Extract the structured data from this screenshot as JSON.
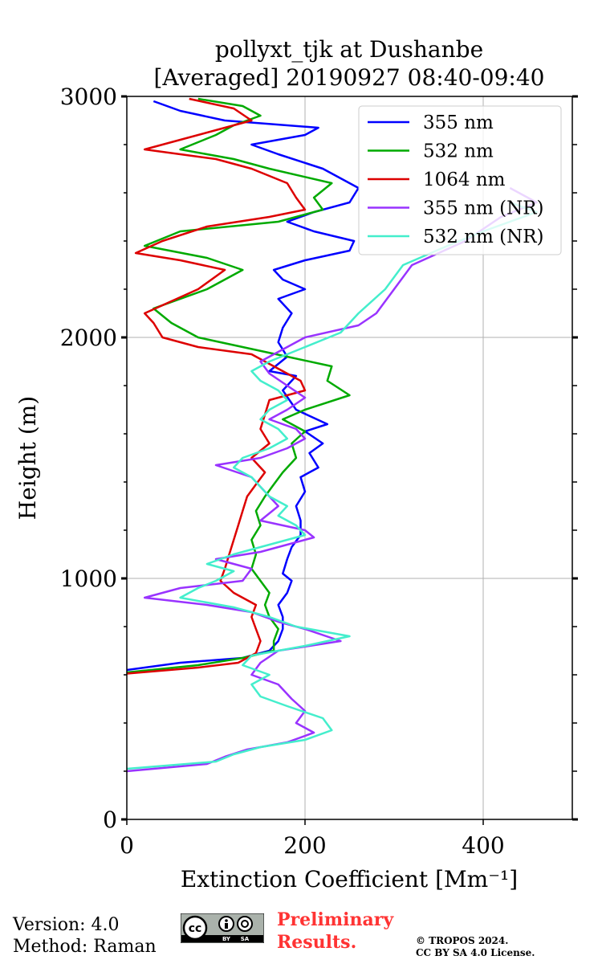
{
  "chart_data": {
    "type": "line",
    "title": "pollyxt_tjk at Dushanbe",
    "subtitle": "[Averaged] 20190927 08:40-09:40",
    "xlabel": "Extinction Coefficient [Mm⁻¹]",
    "ylabel": "Height (m)",
    "xlim": [
      0,
      500
    ],
    "ylim": [
      0,
      3000
    ],
    "xticks": [
      "0",
      "200",
      "400"
    ],
    "xtick_values": [
      0,
      200,
      400
    ],
    "yticks": [
      "0",
      "1000",
      "2000",
      "3000"
    ],
    "ytick_values": [
      0,
      1000,
      2000,
      3000
    ],
    "grid": true,
    "legend_position": "top-right",
    "series": [
      {
        "name": "355 nm",
        "color": "#0000ff",
        "points": [
          [
            0,
            620
          ],
          [
            60,
            650
          ],
          [
            130,
            670
          ],
          [
            160,
            700
          ],
          [
            170,
            740
          ],
          [
            175,
            790
          ],
          [
            175,
            840
          ],
          [
            170,
            890
          ],
          [
            180,
            940
          ],
          [
            185,
            990
          ],
          [
            175,
            1020
          ],
          [
            180,
            1080
          ],
          [
            185,
            1130
          ],
          [
            195,
            1180
          ],
          [
            195,
            1240
          ],
          [
            190,
            1300
          ],
          [
            200,
            1360
          ],
          [
            195,
            1420
          ],
          [
            215,
            1460
          ],
          [
            205,
            1520
          ],
          [
            220,
            1560
          ],
          [
            200,
            1610
          ],
          [
            225,
            1640
          ],
          [
            190,
            1700
          ],
          [
            175,
            1780
          ],
          [
            190,
            1840
          ],
          [
            160,
            1860
          ],
          [
            180,
            1920
          ],
          [
            170,
            1980
          ],
          [
            175,
            2040
          ],
          [
            185,
            2100
          ],
          [
            170,
            2160
          ],
          [
            200,
            2200
          ],
          [
            175,
            2240
          ],
          [
            165,
            2280
          ],
          [
            200,
            2320
          ],
          [
            250,
            2360
          ],
          [
            255,
            2400
          ],
          [
            210,
            2440
          ],
          [
            180,
            2480
          ],
          [
            210,
            2520
          ],
          [
            250,
            2560
          ],
          [
            260,
            2620
          ],
          [
            220,
            2700
          ],
          [
            170,
            2760
          ],
          [
            140,
            2800
          ],
          [
            200,
            2840
          ],
          [
            215,
            2870
          ],
          [
            110,
            2900
          ],
          [
            60,
            2940
          ],
          [
            30,
            2980
          ]
        ]
      },
      {
        "name": "532 nm",
        "color": "#00aa00",
        "points": [
          [
            0,
            610
          ],
          [
            80,
            640
          ],
          [
            130,
            670
          ],
          [
            165,
            700
          ],
          [
            165,
            740
          ],
          [
            170,
            790
          ],
          [
            160,
            840
          ],
          [
            155,
            890
          ],
          [
            160,
            940
          ],
          [
            150,
            990
          ],
          [
            140,
            1040
          ],
          [
            145,
            1100
          ],
          [
            140,
            1160
          ],
          [
            150,
            1220
          ],
          [
            145,
            1280
          ],
          [
            155,
            1340
          ],
          [
            165,
            1390
          ],
          [
            175,
            1440
          ],
          [
            190,
            1500
          ],
          [
            185,
            1560
          ],
          [
            200,
            1610
          ],
          [
            175,
            1660
          ],
          [
            200,
            1700
          ],
          [
            250,
            1760
          ],
          [
            225,
            1820
          ],
          [
            230,
            1880
          ],
          [
            180,
            1920
          ],
          [
            130,
            1960
          ],
          [
            80,
            2000
          ],
          [
            50,
            2060
          ],
          [
            30,
            2120
          ],
          [
            90,
            2200
          ],
          [
            130,
            2280
          ],
          [
            90,
            2330
          ],
          [
            20,
            2380
          ],
          [
            60,
            2440
          ],
          [
            170,
            2480
          ],
          [
            220,
            2530
          ],
          [
            210,
            2580
          ],
          [
            230,
            2640
          ],
          [
            160,
            2700
          ],
          [
            120,
            2740
          ],
          [
            60,
            2780
          ],
          [
            100,
            2840
          ],
          [
            120,
            2880
          ],
          [
            150,
            2920
          ],
          [
            130,
            2960
          ],
          [
            80,
            2990
          ]
        ]
      },
      {
        "name": "1064 nm",
        "color": "#dd0000",
        "points": [
          [
            0,
            605
          ],
          [
            80,
            630
          ],
          [
            125,
            650
          ],
          [
            145,
            690
          ],
          [
            150,
            740
          ],
          [
            145,
            790
          ],
          [
            140,
            840
          ],
          [
            145,
            890
          ],
          [
            120,
            940
          ],
          [
            105,
            990
          ],
          [
            110,
            1040
          ],
          [
            115,
            1100
          ],
          [
            120,
            1160
          ],
          [
            125,
            1220
          ],
          [
            130,
            1280
          ],
          [
            135,
            1340
          ],
          [
            145,
            1390
          ],
          [
            155,
            1440
          ],
          [
            140,
            1500
          ],
          [
            160,
            1560
          ],
          [
            150,
            1620
          ],
          [
            155,
            1680
          ],
          [
            160,
            1740
          ],
          [
            200,
            1780
          ],
          [
            195,
            1820
          ],
          [
            175,
            1860
          ],
          [
            160,
            1890
          ],
          [
            140,
            1930
          ],
          [
            80,
            1960
          ],
          [
            40,
            2000
          ],
          [
            30,
            2060
          ],
          [
            20,
            2100
          ],
          [
            80,
            2200
          ],
          [
            110,
            2280
          ],
          [
            60,
            2320
          ],
          [
            10,
            2350
          ],
          [
            40,
            2400
          ],
          [
            90,
            2460
          ],
          [
            160,
            2500
          ],
          [
            200,
            2530
          ],
          [
            190,
            2580
          ],
          [
            180,
            2640
          ],
          [
            140,
            2700
          ],
          [
            100,
            2740
          ],
          [
            20,
            2780
          ],
          [
            60,
            2820
          ],
          [
            100,
            2860
          ],
          [
            140,
            2900
          ],
          [
            120,
            2950
          ],
          [
            70,
            2990
          ]
        ]
      },
      {
        "name": "355 nm (NR)",
        "color": "#9933ff",
        "points": [
          [
            0,
            200
          ],
          [
            90,
            230
          ],
          [
            110,
            260
          ],
          [
            135,
            290
          ],
          [
            180,
            320
          ],
          [
            210,
            360
          ],
          [
            190,
            400
          ],
          [
            200,
            450
          ],
          [
            185,
            500
          ],
          [
            170,
            560
          ],
          [
            140,
            600
          ],
          [
            150,
            650
          ],
          [
            170,
            700
          ],
          [
            240,
            740
          ],
          [
            200,
            790
          ],
          [
            170,
            820
          ],
          [
            140,
            860
          ],
          [
            90,
            890
          ],
          [
            20,
            920
          ],
          [
            60,
            960
          ],
          [
            130,
            990
          ],
          [
            140,
            1040
          ],
          [
            100,
            1080
          ],
          [
            150,
            1110
          ],
          [
            180,
            1140
          ],
          [
            210,
            1170
          ],
          [
            200,
            1200
          ],
          [
            150,
            1240
          ],
          [
            160,
            1270
          ],
          [
            170,
            1300
          ],
          [
            160,
            1340
          ],
          [
            150,
            1380
          ],
          [
            140,
            1420
          ],
          [
            100,
            1470
          ],
          [
            150,
            1500
          ],
          [
            180,
            1540
          ],
          [
            200,
            1580
          ],
          [
            190,
            1620
          ],
          [
            160,
            1660
          ],
          [
            180,
            1700
          ],
          [
            200,
            1750
          ],
          [
            180,
            1800
          ],
          [
            160,
            1850
          ],
          [
            150,
            1900
          ],
          [
            200,
            2000
          ],
          [
            260,
            2050
          ],
          [
            280,
            2100
          ],
          [
            300,
            2200
          ],
          [
            320,
            2300
          ],
          [
            380,
            2400
          ],
          [
            420,
            2500
          ],
          [
            460,
            2560
          ],
          [
            430,
            2620
          ]
        ]
      },
      {
        "name": "532 nm (NR)",
        "color": "#44eecc",
        "points": [
          [
            0,
            210
          ],
          [
            100,
            240
          ],
          [
            120,
            270
          ],
          [
            150,
            300
          ],
          [
            200,
            330
          ],
          [
            230,
            370
          ],
          [
            220,
            420
          ],
          [
            180,
            470
          ],
          [
            150,
            510
          ],
          [
            140,
            560
          ],
          [
            160,
            600
          ],
          [
            130,
            640
          ],
          [
            140,
            680
          ],
          [
            200,
            720
          ],
          [
            250,
            760
          ],
          [
            190,
            800
          ],
          [
            160,
            840
          ],
          [
            120,
            880
          ],
          [
            60,
            920
          ],
          [
            80,
            960
          ],
          [
            100,
            990
          ],
          [
            120,
            1030
          ],
          [
            90,
            1060
          ],
          [
            120,
            1100
          ],
          [
            160,
            1140
          ],
          [
            200,
            1180
          ],
          [
            190,
            1220
          ],
          [
            170,
            1260
          ],
          [
            180,
            1300
          ],
          [
            160,
            1340
          ],
          [
            150,
            1380
          ],
          [
            140,
            1420
          ],
          [
            120,
            1460
          ],
          [
            130,
            1500
          ],
          [
            160,
            1540
          ],
          [
            180,
            1580
          ],
          [
            170,
            1620
          ],
          [
            150,
            1660
          ],
          [
            160,
            1700
          ],
          [
            180,
            1740
          ],
          [
            170,
            1780
          ],
          [
            150,
            1820
          ],
          [
            140,
            1860
          ],
          [
            160,
            1900
          ],
          [
            200,
            1960
          ],
          [
            240,
            2020
          ],
          [
            260,
            2100
          ],
          [
            290,
            2200
          ],
          [
            310,
            2300
          ],
          [
            360,
            2380
          ],
          [
            400,
            2440
          ],
          [
            430,
            2480
          ],
          [
            460,
            2520
          ],
          [
            430,
            2560
          ]
        ]
      }
    ]
  },
  "footer": {
    "version": "Version: 4.0",
    "method": "Method: Raman",
    "preliminary_line1": "Preliminary",
    "preliminary_line2": "Results.",
    "copyright_line1": "© TROPOS 2024.",
    "copyright_line2": "CC BY SA 4.0 License.",
    "cc_letters": "cc",
    "cc_by": "BY",
    "cc_sa": "SA"
  }
}
